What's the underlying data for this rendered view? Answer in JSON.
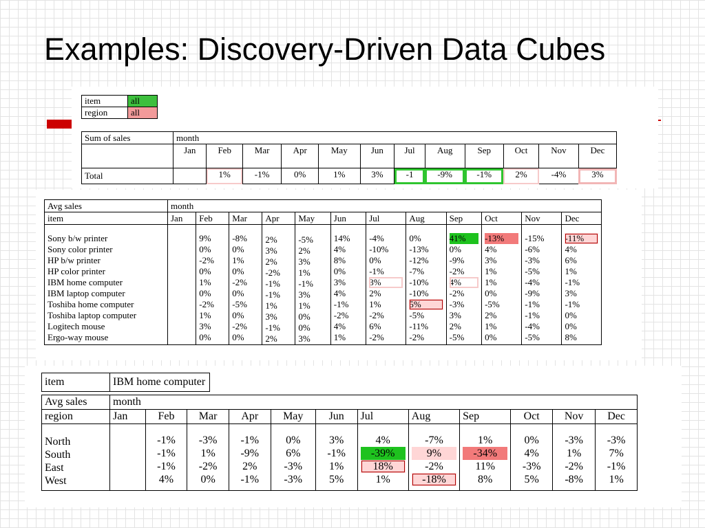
{
  "title": "Examples: Discovery-Driven Data Cubes",
  "months": [
    "Jan",
    "Feb",
    "Mar",
    "Apr",
    "May",
    "Jun",
    "Jul",
    "Aug",
    "Sep",
    "Oct",
    "Nov",
    "Dec"
  ],
  "panel1": {
    "filter": [
      {
        "label": "item",
        "value": "all",
        "color": "#3dbf3d"
      },
      {
        "label": "region",
        "value": "all",
        "color": "#f29a9a"
      }
    ],
    "measure": "Sum of sales",
    "dimension": "month",
    "row_label": "Total",
    "values": [
      "",
      "1%",
      "-1%",
      "0%",
      "1%",
      "3%",
      "-1",
      "-9%",
      "-1%",
      "2%",
      "-4%",
      "3%"
    ]
  },
  "panel2": {
    "measure": "Avg sales",
    "dimension": "month",
    "row_header": "item",
    "rows": [
      {
        "label": "Sony b/w printer",
        "values": [
          "",
          "9%",
          "-8%",
          "2%",
          "-5%",
          "14%",
          "-4%",
          "0%",
          "41%",
          "-13%",
          "-15%",
          "-11%"
        ]
      },
      {
        "label": "Sony color printer",
        "values": [
          "",
          "0%",
          "0%",
          "3%",
          "2%",
          "4%",
          "-10%",
          "-13%",
          "0%",
          "4%",
          "-6%",
          "4%"
        ]
      },
      {
        "label": "HP b/w printer",
        "values": [
          "",
          "-2%",
          "1%",
          "2%",
          "3%",
          "8%",
          "0%",
          "-12%",
          "-9%",
          "3%",
          "-3%",
          "6%"
        ]
      },
      {
        "label": "HP color printer",
        "values": [
          "",
          "0%",
          "0%",
          "-2%",
          "1%",
          "0%",
          "-1%",
          "-7%",
          "-2%",
          "1%",
          "-5%",
          "1%"
        ]
      },
      {
        "label": "IBM home computer",
        "values": [
          "",
          "1%",
          "-2%",
          "-1%",
          "-1%",
          "3%",
          "3%",
          "-10%",
          "4%",
          "1%",
          "-4%",
          "-1%"
        ]
      },
      {
        "label": "IBM laptop computer",
        "values": [
          "",
          "0%",
          "0%",
          "-1%",
          "3%",
          "4%",
          "2%",
          "-10%",
          "-2%",
          "0%",
          "-9%",
          "3%"
        ]
      },
      {
        "label": "Toshiba home computer",
        "values": [
          "",
          "-2%",
          "-5%",
          "1%",
          "1%",
          "-1%",
          "1%",
          "5%",
          "-3%",
          "-5%",
          "-1%",
          "-1%"
        ]
      },
      {
        "label": "Toshiba laptop computer",
        "values": [
          "",
          "1%",
          "0%",
          "3%",
          "0%",
          "-2%",
          "-2%",
          "-5%",
          "3%",
          "2%",
          "-1%",
          "0%"
        ]
      },
      {
        "label": "Logitech mouse",
        "values": [
          "",
          "3%",
          "-2%",
          "-1%",
          "0%",
          "4%",
          "6%",
          "-11%",
          "2%",
          "1%",
          "-4%",
          "0%"
        ]
      },
      {
        "label": "Ergo-way mouse",
        "values": [
          "",
          "0%",
          "0%",
          "2%",
          "3%",
          "1%",
          "-2%",
          "-2%",
          "-5%",
          "0%",
          "-5%",
          "8%"
        ]
      }
    ]
  },
  "panel3": {
    "item_label": "item",
    "item_value": "IBM home computer",
    "measure": "Avg sales",
    "dimension": "month",
    "row_header": "region",
    "rows": [
      {
        "label": "North",
        "values": [
          "",
          "-1%",
          "-3%",
          "-1%",
          "0%",
          "3%",
          "4%",
          "-7%",
          "1%",
          "0%",
          "-3%",
          "-3%"
        ]
      },
      {
        "label": "South",
        "values": [
          "",
          "-1%",
          "1%",
          "-9%",
          "6%",
          "-1%",
          "-39%",
          "9%",
          "-34%",
          "4%",
          "1%",
          "7%"
        ]
      },
      {
        "label": "East",
        "values": [
          "",
          "-1%",
          "-2%",
          "2%",
          "-3%",
          "1%",
          "18%",
          "-2%",
          "11%",
          "-3%",
          "-2%",
          "-1%"
        ]
      },
      {
        "label": "West",
        "values": [
          "",
          "4%",
          "0%",
          "-1%",
          "-3%",
          "5%",
          "1%",
          "-18%",
          "8%",
          "5%",
          "-8%",
          "1%"
        ]
      }
    ]
  },
  "colors": {
    "accent": "#cc0000",
    "highlight_green": "#1ec21e",
    "highlight_red": "#f27a7a",
    "highlight_pink": "#ffd6d6"
  }
}
